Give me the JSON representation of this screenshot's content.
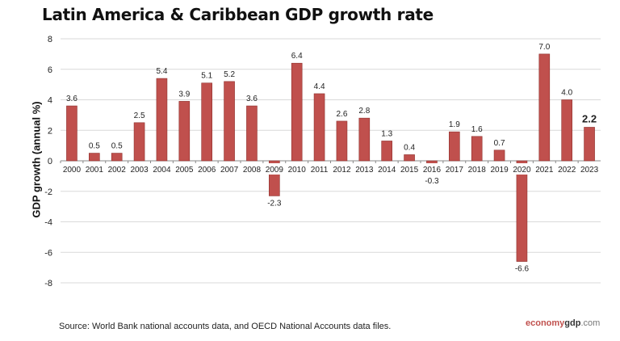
{
  "chart_data": {
    "type": "bar",
    "title": "Latin America & Caribbean GDP growth rate",
    "ylabel": "GDP growth (annual %)",
    "xlabel": "",
    "ylim": [
      -8,
      8
    ],
    "yticks": [
      8,
      6,
      4,
      2,
      0,
      -2,
      -4,
      -6,
      -8
    ],
    "grid": true,
    "bar_color": "#c0504d",
    "categories": [
      "2000",
      "2001",
      "2002",
      "2003",
      "2004",
      "2005",
      "2006",
      "2007",
      "2008",
      "2009",
      "2010",
      "2011",
      "2012",
      "2013",
      "2014",
      "2015",
      "2016",
      "2017",
      "2018",
      "2019",
      "2020",
      "2021",
      "2022",
      "2023"
    ],
    "values": [
      3.6,
      0.5,
      0.5,
      2.5,
      5.4,
      3.9,
      5.1,
      5.2,
      3.6,
      -2.3,
      6.4,
      4.4,
      2.6,
      2.8,
      1.3,
      0.4,
      -0.3,
      1.9,
      1.6,
      0.7,
      -6.6,
      7.0,
      4.0,
      2.2
    ],
    "labels": [
      "3.6",
      "0.5",
      "0.5",
      "2.5",
      "5.4",
      "3.9",
      "5.1",
      "5.2",
      "3.6",
      "-2.3",
      "6.4",
      "4.4",
      "2.6",
      "2.8",
      "1.3",
      "0.4",
      "-0.3",
      "1.9",
      "1.6",
      "0.7",
      "-6.6",
      "7.0",
      "4.0",
      "2.2"
    ]
  },
  "source": "Source:  World Bank national accounts data, and OECD National Accounts data files.",
  "logo": {
    "part1": "economy",
    "part2": "gdp",
    "part3": ".com"
  }
}
